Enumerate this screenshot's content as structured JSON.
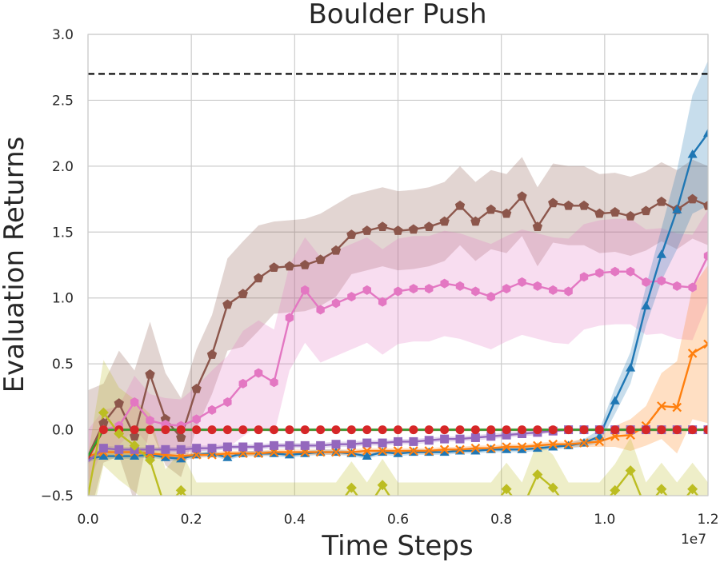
{
  "chart_data": {
    "type": "line",
    "title": "Boulder Push",
    "xlabel": "Time Steps",
    "ylabel": "Evaluation Returns",
    "x_exponent_label": "1e7",
    "xlim": [
      0,
      1.2
    ],
    "ylim": [
      -0.5,
      3.0
    ],
    "x_ticks": [
      "0.0",
      "0.2",
      "0.4",
      "0.6",
      "0.8",
      "1.0",
      "1.2"
    ],
    "y_ticks": [
      "−0.5",
      "0.0",
      "0.5",
      "1.0",
      "1.5",
      "2.0",
      "2.5",
      "3.0"
    ],
    "x_tick_values": [
      0,
      0.2,
      0.4,
      0.6,
      0.8,
      1.0,
      1.2
    ],
    "y_tick_values": [
      -0.5,
      0,
      0.5,
      1.0,
      1.5,
      2.0,
      2.5,
      3.0
    ],
    "grid": true,
    "reference_line": {
      "y": 2.7,
      "style": "dashed",
      "color": "#000000"
    },
    "x": [
      0.0,
      0.03,
      0.06,
      0.09,
      0.12,
      0.15,
      0.18,
      0.21,
      0.24,
      0.27,
      0.3,
      0.33,
      0.36,
      0.39,
      0.42,
      0.45,
      0.48,
      0.51,
      0.54,
      0.57,
      0.6,
      0.63,
      0.66,
      0.69,
      0.72,
      0.75,
      0.78,
      0.81,
      0.84,
      0.87,
      0.9,
      0.93,
      0.96,
      0.99,
      1.02,
      1.05,
      1.08,
      1.11,
      1.14,
      1.17,
      1.2
    ],
    "series": [
      {
        "color": "#8c564b",
        "marker": "pentagon",
        "values": [
          -0.2,
          0.05,
          0.2,
          -0.05,
          0.42,
          0.08,
          -0.06,
          0.31,
          0.57,
          0.95,
          1.03,
          1.15,
          1.23,
          1.24,
          1.25,
          1.29,
          1.36,
          1.48,
          1.51,
          1.54,
          1.51,
          1.52,
          1.54,
          1.58,
          1.7,
          1.58,
          1.67,
          1.64,
          1.77,
          1.54,
          1.72,
          1.7,
          1.7,
          1.64,
          1.65,
          1.62,
          1.66,
          1.73,
          1.67,
          1.75,
          1.7
        ],
        "band": [
          0.5,
          0.3,
          0.4,
          0.5,
          0.4,
          0.35,
          0.3,
          0.3,
          0.3,
          0.35,
          0.4,
          0.4,
          0.35,
          0.35,
          0.35,
          0.35,
          0.35,
          0.3,
          0.3,
          0.3,
          0.3,
          0.3,
          0.3,
          0.3,
          0.3,
          0.3,
          0.3,
          0.3,
          0.3,
          0.3,
          0.3,
          0.3,
          0.3,
          0.3,
          0.3,
          0.3,
          0.3,
          0.3,
          0.3,
          0.3,
          0.3
        ]
      },
      {
        "color": "#e377c2",
        "marker": "hexagon",
        "values": [
          -0.2,
          0.0,
          0.03,
          0.21,
          0.07,
          0.04,
          0.03,
          0.08,
          0.15,
          0.21,
          0.35,
          0.43,
          0.36,
          0.85,
          1.06,
          0.91,
          0.96,
          1.01,
          1.06,
          0.97,
          1.05,
          1.07,
          1.07,
          1.11,
          1.09,
          1.05,
          1.01,
          1.07,
          1.12,
          1.09,
          1.06,
          1.05,
          1.16,
          1.19,
          1.2,
          1.2,
          1.12,
          1.13,
          1.09,
          1.08,
          1.32
        ],
        "band": [
          0.2,
          0.15,
          0.15,
          0.2,
          0.2,
          0.2,
          0.2,
          0.25,
          0.3,
          0.35,
          0.4,
          0.4,
          0.4,
          0.4,
          0.4,
          0.4,
          0.4,
          0.4,
          0.4,
          0.4,
          0.4,
          0.4,
          0.4,
          0.4,
          0.4,
          0.4,
          0.4,
          0.4,
          0.4,
          0.4,
          0.4,
          0.4,
          0.4,
          0.4,
          0.4,
          0.4,
          0.4,
          0.4,
          0.4,
          0.4,
          0.35
        ]
      },
      {
        "color": "#1f77b4",
        "marker": "triangle",
        "values": [
          -0.22,
          -0.2,
          -0.2,
          -0.2,
          -0.19,
          -0.21,
          -0.22,
          -0.19,
          -0.18,
          -0.21,
          -0.18,
          -0.18,
          -0.18,
          -0.19,
          -0.18,
          -0.17,
          -0.17,
          -0.18,
          -0.2,
          -0.17,
          -0.18,
          -0.17,
          -0.17,
          -0.17,
          -0.16,
          -0.16,
          -0.15,
          -0.15,
          -0.15,
          -0.14,
          -0.13,
          -0.12,
          -0.1,
          -0.05,
          0.22,
          0.47,
          0.94,
          1.33,
          1.67,
          2.09,
          2.25
        ],
        "band": [
          0.02,
          0.02,
          0.02,
          0.02,
          0.02,
          0.02,
          0.02,
          0.02,
          0.02,
          0.02,
          0.02,
          0.02,
          0.02,
          0.02,
          0.02,
          0.02,
          0.02,
          0.02,
          0.02,
          0.02,
          0.02,
          0.02,
          0.02,
          0.02,
          0.02,
          0.02,
          0.02,
          0.02,
          0.02,
          0.02,
          0.02,
          0.02,
          0.03,
          0.05,
          0.1,
          0.12,
          0.15,
          0.2,
          0.3,
          0.45,
          0.55
        ]
      },
      {
        "color": "#ff7f0e",
        "marker": "x",
        "values": [
          -0.2,
          -0.17,
          -0.17,
          -0.17,
          -0.18,
          -0.19,
          -0.2,
          -0.19,
          -0.19,
          -0.18,
          -0.18,
          -0.18,
          -0.17,
          -0.17,
          -0.17,
          -0.17,
          -0.17,
          -0.17,
          -0.16,
          -0.16,
          -0.16,
          -0.16,
          -0.16,
          -0.15,
          -0.15,
          -0.14,
          -0.14,
          -0.13,
          -0.13,
          -0.12,
          -0.11,
          -0.11,
          -0.1,
          -0.09,
          -0.05,
          -0.04,
          0.03,
          0.18,
          0.17,
          0.58,
          0.65
        ],
        "band": [
          0.02,
          0.02,
          0.02,
          0.02,
          0.02,
          0.02,
          0.02,
          0.02,
          0.02,
          0.02,
          0.02,
          0.02,
          0.02,
          0.02,
          0.02,
          0.02,
          0.02,
          0.02,
          0.02,
          0.02,
          0.02,
          0.02,
          0.02,
          0.02,
          0.02,
          0.02,
          0.02,
          0.02,
          0.02,
          0.02,
          0.02,
          0.02,
          0.03,
          0.04,
          0.08,
          0.12,
          0.15,
          0.25,
          0.35,
          0.5,
          0.6
        ]
      },
      {
        "color": "#9467bd",
        "marker": "square",
        "values": [
          -0.24,
          -0.14,
          -0.15,
          -0.15,
          -0.15,
          -0.15,
          -0.15,
          -0.14,
          -0.14,
          -0.13,
          -0.13,
          -0.13,
          -0.12,
          -0.12,
          -0.12,
          -0.12,
          -0.11,
          -0.11,
          -0.1,
          -0.1,
          -0.09,
          -0.09,
          -0.08,
          -0.07,
          -0.07,
          -0.06,
          -0.05,
          -0.04,
          -0.03,
          -0.02,
          -0.01,
          0.0,
          0.0,
          0.0,
          0.0,
          0.0,
          0.0,
          0.0,
          0.0,
          0.0,
          0.0
        ],
        "band": [
          0.02,
          0.02,
          0.02,
          0.02,
          0.02,
          0.02,
          0.02,
          0.02,
          0.02,
          0.02,
          0.02,
          0.02,
          0.02,
          0.02,
          0.02,
          0.02,
          0.02,
          0.02,
          0.02,
          0.02,
          0.02,
          0.02,
          0.02,
          0.02,
          0.02,
          0.02,
          0.02,
          0.02,
          0.02,
          0.02,
          0.01,
          0.01,
          0.01,
          0.01,
          0.01,
          0.01,
          0.01,
          0.01,
          0.01,
          0.01,
          0.01
        ]
      },
      {
        "color": "#d62728",
        "marker": "circle",
        "values": [
          -0.22,
          0.0,
          0.0,
          0.0,
          0.0,
          0.0,
          0.0,
          0.0,
          0.0,
          0.0,
          0.0,
          0.0,
          0.0,
          0.0,
          0.0,
          0.0,
          0.0,
          0.0,
          0.0,
          0.0,
          0.0,
          0.0,
          0.0,
          0.0,
          0.0,
          0.0,
          0.0,
          0.0,
          0.0,
          0.0,
          0.0,
          0.0,
          0.0,
          0.0,
          0.0,
          0.0,
          0.0,
          0.0,
          0.0,
          0.0,
          0.0
        ],
        "band": [
          0.01,
          0.01,
          0.01,
          0.01,
          0.01,
          0.01,
          0.01,
          0.01,
          0.01,
          0.01,
          0.01,
          0.01,
          0.01,
          0.01,
          0.01,
          0.01,
          0.01,
          0.01,
          0.01,
          0.01,
          0.01,
          0.01,
          0.01,
          0.01,
          0.01,
          0.01,
          0.01,
          0.01,
          0.01,
          0.01,
          0.01,
          0.01,
          0.01,
          0.01,
          0.01,
          0.01,
          0.01,
          0.01,
          0.01,
          0.01,
          0.01
        ]
      },
      {
        "color": "#2ca02c",
        "marker": "none",
        "values": [
          -0.2,
          0.0,
          0.0,
          0.0,
          0.0,
          0.0,
          0.0,
          0.0,
          0.0,
          0.0,
          0.0,
          0.0,
          0.0,
          0.0,
          0.0,
          0.0,
          0.0,
          0.0,
          0.0,
          0.0,
          0.0,
          0.0,
          0.0,
          0.0,
          0.0,
          0.0,
          0.0,
          0.0,
          0.0,
          0.0,
          0.0,
          0.0,
          0.0,
          0.0,
          0.0,
          0.0,
          0.0,
          0.0,
          0.0,
          0.0,
          0.0
        ],
        "band": [
          0.01,
          0.01,
          0.01,
          0.01,
          0.01,
          0.01,
          0.01,
          0.01,
          0.01,
          0.01,
          0.01,
          0.01,
          0.01,
          0.01,
          0.01,
          0.01,
          0.01,
          0.01,
          0.01,
          0.01,
          0.01,
          0.01,
          0.01,
          0.01,
          0.01,
          0.01,
          0.01,
          0.01,
          0.01,
          0.01,
          0.01,
          0.01,
          0.01,
          0.01,
          0.01,
          0.01,
          0.01,
          0.01,
          0.01,
          0.01,
          0.01
        ]
      },
      {
        "color": "#bcbd22",
        "marker": "diamond",
        "values": [
          -0.5,
          0.13,
          -0.03,
          -0.12,
          -0.23,
          -0.6,
          -0.46,
          -0.6,
          -0.6,
          -0.6,
          -0.6,
          -0.6,
          -0.6,
          -0.6,
          -0.6,
          -0.6,
          -0.6,
          -0.44,
          -0.6,
          -0.42,
          -0.6,
          -0.6,
          -0.6,
          -0.6,
          -0.6,
          -0.6,
          -0.6,
          -0.45,
          -0.6,
          -0.34,
          -0.44,
          -0.6,
          -0.6,
          -0.6,
          -0.46,
          -0.31,
          -0.6,
          -0.45,
          -0.6,
          -0.45,
          -0.6
        ],
        "band": [
          0.3,
          0.4,
          0.35,
          0.35,
          0.35,
          0.3,
          0.3,
          0.2,
          0.2,
          0.2,
          0.2,
          0.2,
          0.2,
          0.2,
          0.2,
          0.2,
          0.2,
          0.2,
          0.2,
          0.2,
          0.2,
          0.2,
          0.2,
          0.2,
          0.2,
          0.2,
          0.2,
          0.2,
          0.2,
          0.25,
          0.25,
          0.2,
          0.2,
          0.2,
          0.2,
          0.25,
          0.2,
          0.2,
          0.2,
          0.2,
          0.2
        ]
      }
    ]
  }
}
